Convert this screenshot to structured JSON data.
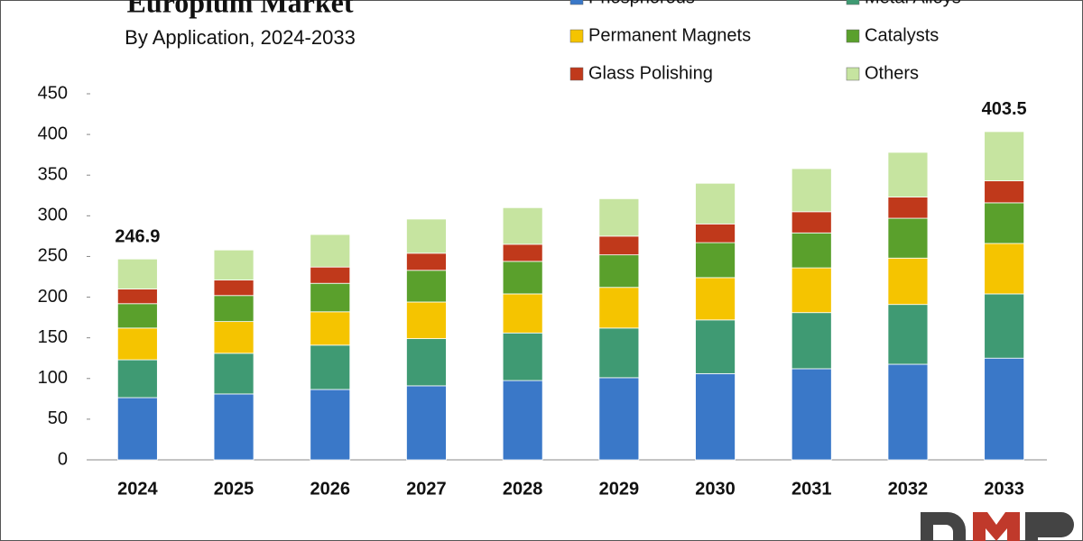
{
  "chart_data": {
    "type": "stacked_bar",
    "title": "Europium Market",
    "subtitle": "By Application, 2024-2033",
    "categories": [
      "2024",
      "2025",
      "2026",
      "2027",
      "2028",
      "2029",
      "2030",
      "2031",
      "2032",
      "2033"
    ],
    "series": [
      {
        "name": "Phosphorous",
        "color": "#3a78c8",
        "values": [
          76.5,
          81,
          86.5,
          91,
          97.5,
          101,
          106,
          112,
          117.5,
          125
        ]
      },
      {
        "name": "Metal Alloys",
        "color": "#3f9a73",
        "values": [
          46.5,
          50,
          54.5,
          58,
          58.5,
          61,
          66,
          69,
          73.5,
          79
        ]
      },
      {
        "name": "Permanent Magnets",
        "color": "#f5c400",
        "values": [
          39,
          39,
          41,
          45,
          48,
          50,
          52,
          55,
          57,
          62
        ]
      },
      {
        "name": "Catalysts",
        "color": "#5aa02c",
        "values": [
          30,
          32,
          35,
          39,
          40,
          40,
          43,
          43,
          49,
          50
        ]
      },
      {
        "name": "Glass Polishing",
        "color": "#c0391b",
        "values": [
          18,
          19,
          20,
          21,
          21,
          23,
          23,
          26,
          26,
          27
        ]
      },
      {
        "name": "Others",
        "color": "#c6e4a0",
        "values": [
          36.9,
          37,
          40,
          42,
          45,
          46,
          50,
          53,
          55,
          60.5
        ]
      }
    ],
    "annotations": [
      {
        "category": "2024",
        "value": 246.9
      },
      {
        "category": "2033",
        "value": 403.5
      }
    ],
    "ylim": [
      0,
      450
    ],
    "yticks": [
      0,
      50,
      100,
      150,
      200,
      250,
      300,
      350,
      400,
      450
    ],
    "grid": false
  }
}
